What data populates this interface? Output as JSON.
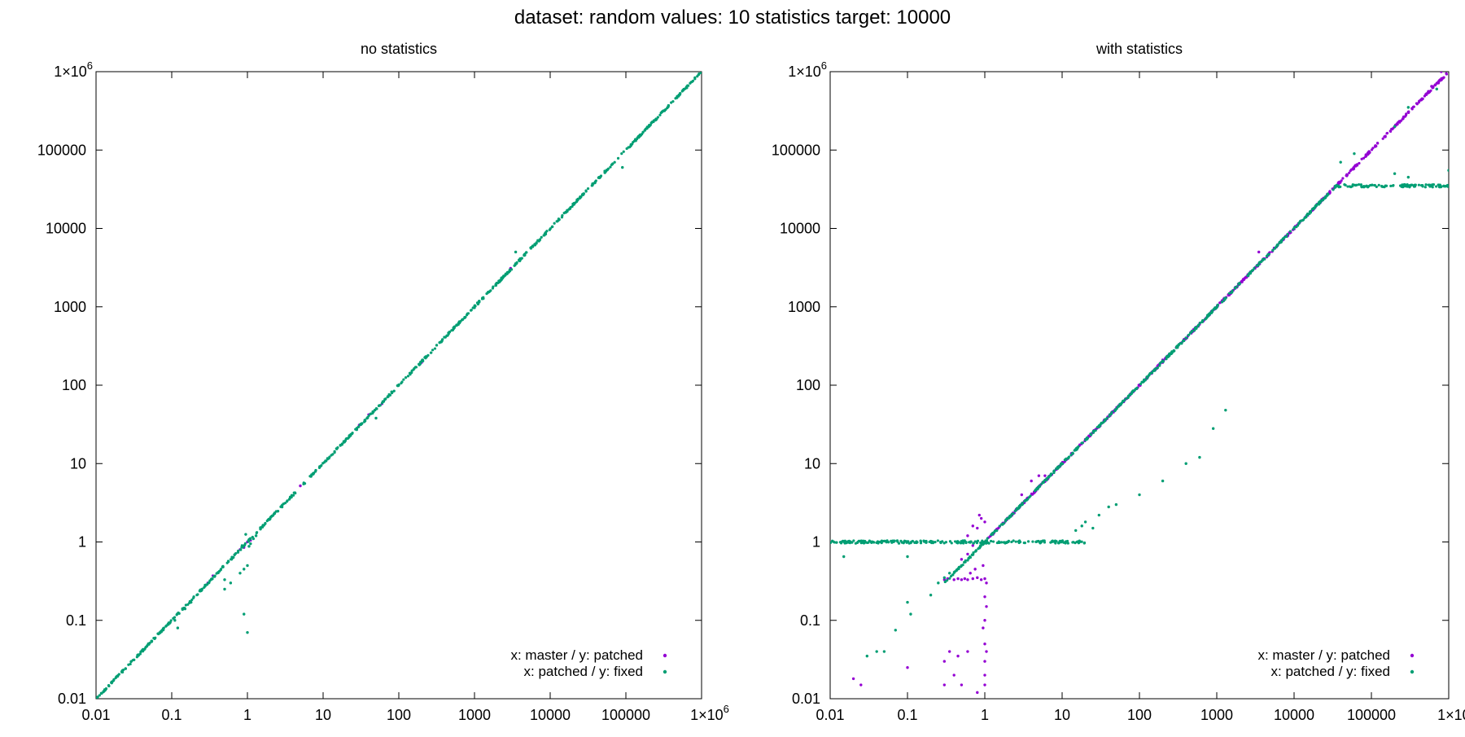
{
  "figure": {
    "title": "dataset: random  values: 10  statistics target: 10000"
  },
  "colors": {
    "master_patched": "#9400d3",
    "patched_fixed": "#009e73",
    "axis": "#000000"
  },
  "chart_data": [
    {
      "type": "scatter",
      "title": "no statistics",
      "xscale": "log",
      "yscale": "log",
      "xlim": [
        0.01,
        1000000
      ],
      "ylim": [
        0.01,
        1000000
      ],
      "xticks": [
        "0.01",
        "0.1",
        "1",
        "10",
        "100",
        "1000",
        "10000",
        "100000",
        "1×10^6"
      ],
      "yticks": [
        "0.01",
        "0.1",
        "1",
        "10",
        "100",
        "1000",
        "10000",
        "100000",
        "1×10^6"
      ],
      "grid": false,
      "legend_position": "bottom-right",
      "series": [
        {
          "name": "x: master / y: patched",
          "color": "#9400d3",
          "points": [
            [
              0.8,
              0.8
            ],
            [
              0.9,
              0.85
            ],
            [
              1.0,
              1.0
            ],
            [
              1.1,
              1.05
            ],
            [
              0.3,
              0.3
            ],
            [
              0.35,
              0.37
            ],
            [
              5,
              5.2
            ],
            [
              30,
              31
            ],
            [
              200,
              195
            ],
            [
              3000,
              3100
            ],
            [
              40,
              42
            ],
            [
              60,
              58
            ]
          ]
        },
        {
          "name": "x: patched / y: fixed",
          "color": "#009e73",
          "points": [
            [
              0.9,
              0.12
            ],
            [
              1.0,
              0.07
            ],
            [
              0.9,
              0.45
            ],
            [
              1.0,
              0.5
            ],
            [
              0.8,
              0.4
            ],
            [
              0.6,
              0.3
            ],
            [
              0.5,
              0.25
            ],
            [
              0.12,
              0.08
            ],
            [
              0.11,
              0.1
            ],
            [
              0.5,
              0.33
            ],
            [
              50,
              38
            ],
            [
              3500,
              5000
            ],
            [
              90000,
              60000
            ],
            [
              1.2,
              1.1
            ],
            [
              1.3,
              1.2
            ],
            [
              1.1,
              0.95
            ],
            [
              1.05,
              0.88
            ],
            [
              0.95,
              1.25
            ],
            [
              0.85,
              0.9
            ],
            [
              0.15,
              0.14
            ],
            [
              0.18,
              0.17
            ],
            [
              8,
              8.2
            ],
            [
              15,
              15.5
            ],
            [
              400,
              410
            ],
            [
              700,
              690
            ],
            [
              20000,
              20500
            ],
            [
              200000,
              198000
            ]
          ],
          "diagonal_bands": [
            [
              0.01,
              1000000
            ]
          ]
        }
      ]
    },
    {
      "type": "scatter",
      "title": "with statistics",
      "xscale": "log",
      "yscale": "log",
      "xlim": [
        0.01,
        1000000
      ],
      "ylim": [
        0.01,
        1000000
      ],
      "xticks": [
        "0.01",
        "0.1",
        "1",
        "10",
        "100",
        "1000",
        "10000",
        "100000",
        "1×10^6"
      ],
      "yticks": [
        "0.01",
        "0.1",
        "1",
        "10",
        "100",
        "1000",
        "10000",
        "100000",
        "1×10^6"
      ],
      "grid": false,
      "legend_position": "bottom-right",
      "series": [
        {
          "name": "x: master / y: patched",
          "color": "#9400d3",
          "points": [
            [
              0.3,
              0.33
            ],
            [
              0.33,
              0.34
            ],
            [
              0.4,
              0.33
            ],
            [
              0.45,
              0.34
            ],
            [
              0.5,
              0.33
            ],
            [
              0.55,
              0.34
            ],
            [
              0.6,
              0.33
            ],
            [
              0.7,
              0.34
            ],
            [
              0.8,
              0.35
            ],
            [
              0.9,
              0.33
            ],
            [
              1.0,
              0.34
            ],
            [
              0.5,
              0.6
            ],
            [
              0.6,
              0.7
            ],
            [
              0.7,
              0.9
            ],
            [
              0.8,
              1.5
            ],
            [
              0.9,
              2.0
            ],
            [
              1.0,
              1.8
            ],
            [
              0.6,
              1.2
            ],
            [
              0.7,
              1.6
            ],
            [
              0.85,
              2.2
            ],
            [
              0.95,
              0.5
            ],
            [
              0.75,
              0.45
            ],
            [
              0.65,
              0.4
            ],
            [
              1.0,
              0.2
            ],
            [
              1.0,
              0.1
            ],
            [
              1.0,
              0.05
            ],
            [
              1.0,
              0.03
            ],
            [
              1.0,
              0.02
            ],
            [
              1.0,
              0.015
            ],
            [
              0.95,
              0.08
            ],
            [
              1.05,
              0.04
            ],
            [
              1.05,
              0.3
            ],
            [
              1.05,
              0.15
            ],
            [
              0.3,
              0.03
            ],
            [
              0.35,
              0.04
            ],
            [
              0.4,
              0.02
            ],
            [
              0.5,
              0.015
            ],
            [
              0.6,
              0.04
            ],
            [
              0.45,
              0.035
            ],
            [
              0.8,
              0.012
            ],
            [
              0.1,
              0.025
            ],
            [
              0.02,
              0.018
            ],
            [
              0.025,
              0.015
            ],
            [
              0.3,
              0.015
            ],
            [
              5,
              7
            ],
            [
              4,
              6
            ],
            [
              3,
              4
            ],
            [
              6,
              7
            ],
            [
              200,
              210
            ],
            [
              3500,
              5000
            ],
            [
              800000,
              1000000
            ],
            [
              600000,
              650000
            ]
          ],
          "diagonal_bands": [
            [
              1,
              1000000
            ]
          ]
        },
        {
          "name": "x: patched / y: fixed",
          "color": "#009e73",
          "points": [
            [
              0.015,
              0.65
            ],
            [
              0.1,
              0.65
            ],
            [
              0.1,
              0.17
            ],
            [
              0.11,
              0.12
            ],
            [
              0.07,
              0.075
            ],
            [
              0.03,
              0.035
            ],
            [
              0.04,
              0.04
            ],
            [
              0.05,
              0.04
            ],
            [
              0.2,
              0.21
            ],
            [
              0.25,
              0.3
            ],
            [
              0.3,
              0.35
            ],
            [
              0.35,
              0.4
            ],
            [
              0.5,
              0.5
            ],
            [
              25,
              1.5
            ],
            [
              30,
              2.2
            ],
            [
              40,
              2.8
            ],
            [
              50,
              3.0
            ],
            [
              100,
              4.0
            ],
            [
              200,
              6.0
            ],
            [
              400,
              10
            ],
            [
              600,
              12
            ],
            [
              900,
              28
            ],
            [
              1300,
              48
            ],
            [
              40000,
              70000
            ],
            [
              60000,
              90000
            ],
            [
              200000,
              200000
            ],
            [
              300000,
              350000
            ],
            [
              700000,
              600000
            ],
            [
              200000,
              50000
            ],
            [
              300000,
              45000
            ],
            [
              1000000,
              55000
            ],
            [
              15,
              1.4
            ],
            [
              18,
              1.6
            ],
            [
              20,
              1.8
            ]
          ],
          "horizontal_bands": [
            {
              "y": 1.0,
              "x_from": 0.01,
              "x_to": 20
            },
            {
              "y": 35000,
              "x_from": 35000,
              "x_to": 1000000
            }
          ],
          "diagonal_bands": [
            [
              0.3,
              35000
            ]
          ]
        }
      ]
    }
  ]
}
